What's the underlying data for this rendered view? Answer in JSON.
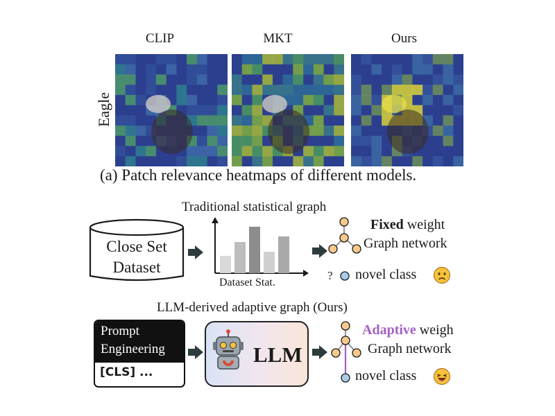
{
  "panel_a": {
    "columns": [
      "CLIP",
      "MKT",
      "Ours"
    ],
    "row_label": "Eagle",
    "caption": "(a) Patch relevance heatmaps of different models."
  },
  "panel_b": {
    "traditional": {
      "title": "Traditional statistical graph",
      "dataset_label": "Close Set Dataset",
      "dataset_line1": "Close Set",
      "dataset_line2": "Dataset",
      "stat_label": "Dataset Stat.",
      "fixed_bold": "Fixed",
      "fixed_rest": " weight",
      "graph_network": "Graph network",
      "question": "?",
      "novel_class": "novel class",
      "emoji": "sad-face"
    },
    "adaptive": {
      "title": "LLM-derived adaptive graph (Ours)",
      "prompt_header": "Prompt Engineering",
      "prompt_line1": "Prompt",
      "prompt_line2": "Engineering",
      "prompt_token": "[CLS] ...",
      "llm_label": "LLM",
      "adaptive_word": "Adaptive",
      "adaptive_rest": " weigh",
      "graph_network": "Graph network",
      "novel_class": "novel class",
      "emoji": "laughing-face"
    }
  },
  "colors": {
    "node_orange": "#f7c98b",
    "node_blue": "#a9cbe8",
    "adaptive_purple": "#a25fc3",
    "arrow_dark": "#2e3b3d",
    "bar_dark": "#8a8a8a",
    "bar_light": "#c8c8c8",
    "heat_base": "#2d3f8f"
  }
}
